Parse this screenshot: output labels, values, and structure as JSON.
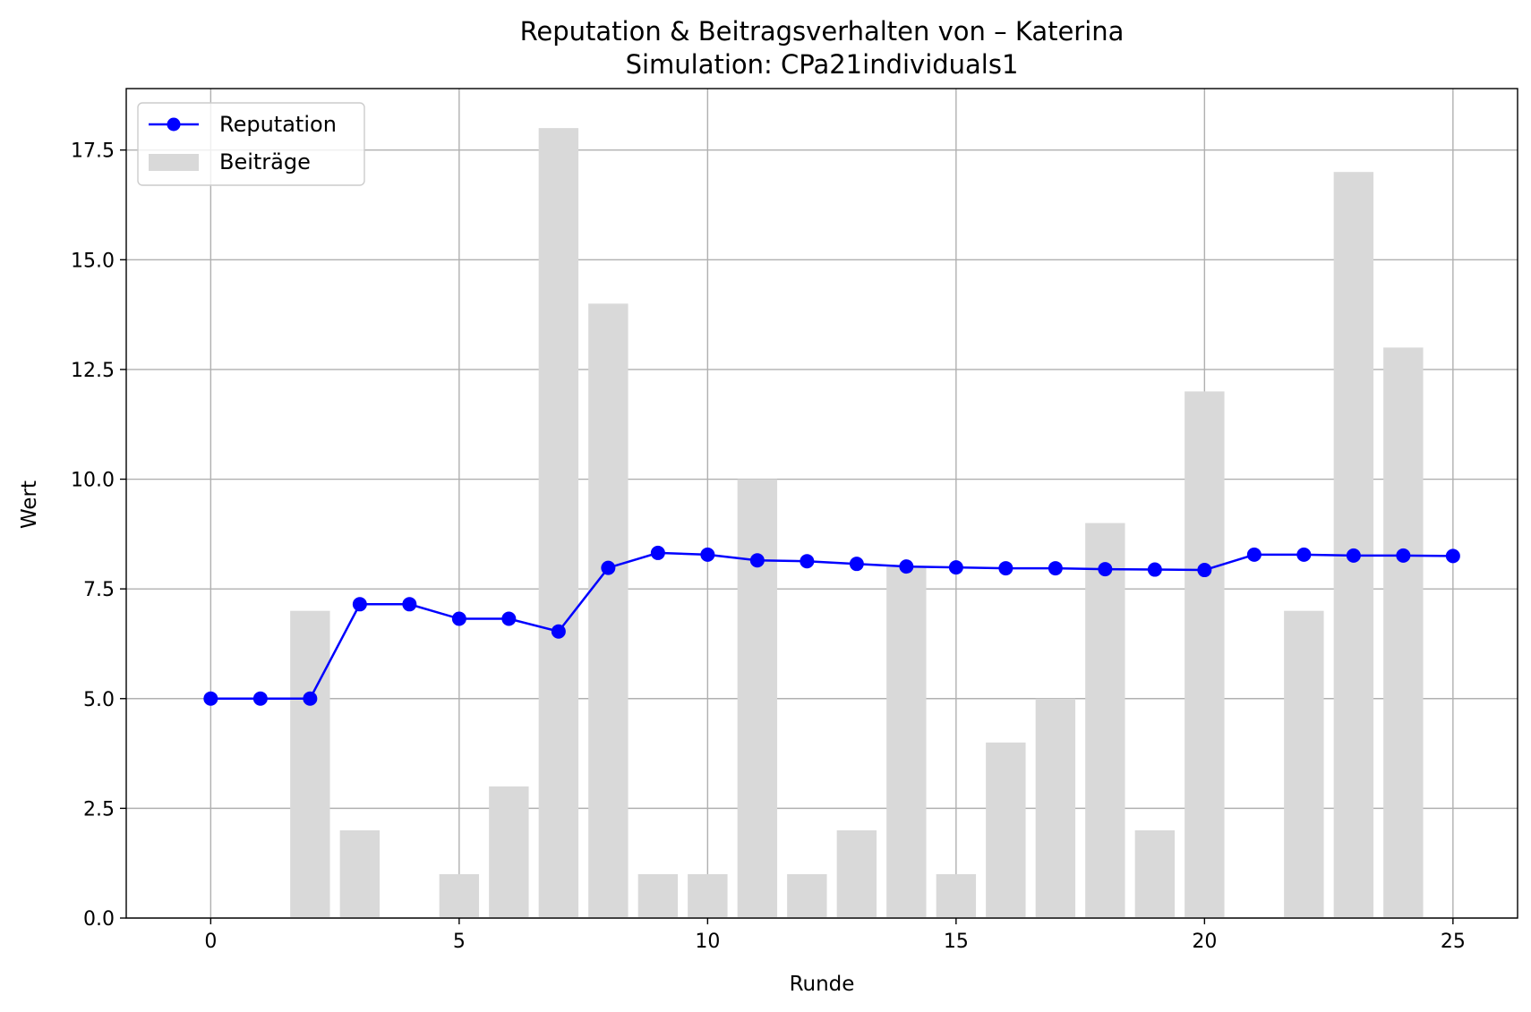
{
  "chart_data": {
    "type": "bar",
    "title": "Reputation & Beitragsverhalten von – Katerina",
    "subtitle": "Simulation: CPa21individuals1",
    "xlabel": "Runde",
    "ylabel": "Wert",
    "xlim": [
      -1.7,
      26.3
    ],
    "ylim": [
      0,
      18.9
    ],
    "x_ticks": [
      0,
      5,
      10,
      15,
      20,
      25
    ],
    "x_tick_labels": [
      "0",
      "5",
      "10",
      "15",
      "20",
      "25"
    ],
    "y_ticks": [
      0,
      2.5,
      5,
      7.5,
      10,
      12.5,
      15,
      17.5
    ],
    "y_tick_labels": [
      "0.0",
      "2.5",
      "5.0",
      "7.5",
      "10.0",
      "12.5",
      "15.0",
      "17.5"
    ],
    "grid": true,
    "legend_position": "top-left",
    "x": [
      0,
      1,
      2,
      3,
      4,
      5,
      6,
      7,
      8,
      9,
      10,
      11,
      12,
      13,
      14,
      15,
      16,
      17,
      18,
      19,
      20,
      21,
      22,
      23,
      24,
      25
    ],
    "series": [
      {
        "name": "Reputation",
        "type": "line",
        "color": "#0000ff",
        "marker": "circle",
        "values": [
          5.0,
          5.0,
          5.0,
          7.15,
          7.15,
          6.82,
          6.82,
          6.53,
          7.98,
          8.32,
          8.28,
          8.15,
          8.13,
          8.07,
          8.01,
          7.99,
          7.97,
          7.97,
          7.95,
          7.94,
          7.93,
          8.28,
          8.28,
          8.26,
          8.26,
          8.25
        ]
      },
      {
        "name": "Beiträge",
        "type": "bar",
        "color": "#d9d9d9",
        "values": [
          0,
          0,
          7,
          2,
          0,
          1,
          3,
          18,
          14,
          1,
          1,
          10,
          1,
          2,
          8,
          1,
          4,
          5,
          9,
          2,
          12,
          0,
          7,
          17,
          13,
          0
        ]
      }
    ]
  }
}
